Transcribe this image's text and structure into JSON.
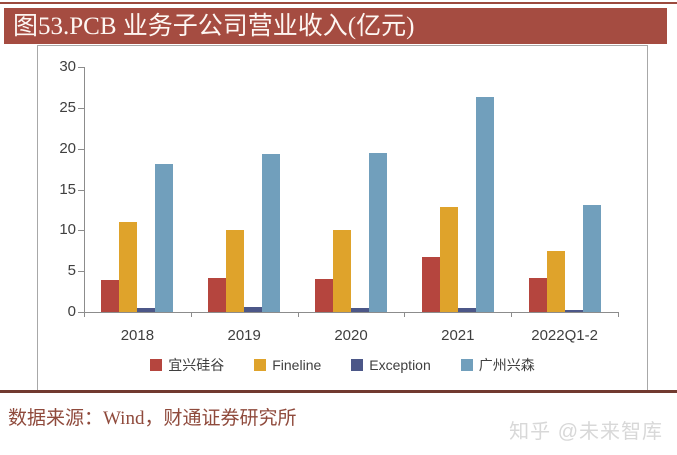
{
  "page": {
    "title": "图53.PCB 业务子公司营业收入(亿元)",
    "source": "数据来源：Wind，财通证券研究所",
    "watermark": "知乎 @未来智库"
  },
  "colors": {
    "title_bar": "#A54C41",
    "bottom_rule": "#713A30",
    "source_text": "#8F4A3C",
    "axis": "#8C8C8C",
    "tick_text": "#3F3F3F",
    "watermark_text": "#D8D8D8"
  },
  "chart_data": {
    "type": "bar",
    "title": "图53.PCB 业务子公司营业收入(亿元)",
    "xlabel": "",
    "ylabel": "",
    "categories": [
      "2018",
      "2019",
      "2020",
      "2021",
      "2022Q1-2"
    ],
    "series": [
      {
        "name": "宜兴硅谷",
        "color": "#B5453E",
        "values": [
          3.9,
          4.2,
          4.1,
          6.7,
          4.2
        ]
      },
      {
        "name": "Fineline",
        "color": "#DFA32B",
        "values": [
          11.0,
          10.1,
          10.0,
          12.9,
          7.5
        ]
      },
      {
        "name": "Exception",
        "color": "#4C5788",
        "values": [
          0.5,
          0.6,
          0.5,
          0.5,
          0.3
        ]
      },
      {
        "name": "广州兴森",
        "color": "#719FBC",
        "values": [
          18.1,
          19.3,
          19.5,
          26.3,
          13.1
        ]
      }
    ],
    "ylim": [
      0,
      30
    ],
    "ytick_step": 5,
    "grid": false,
    "legend_position": "bottom"
  }
}
